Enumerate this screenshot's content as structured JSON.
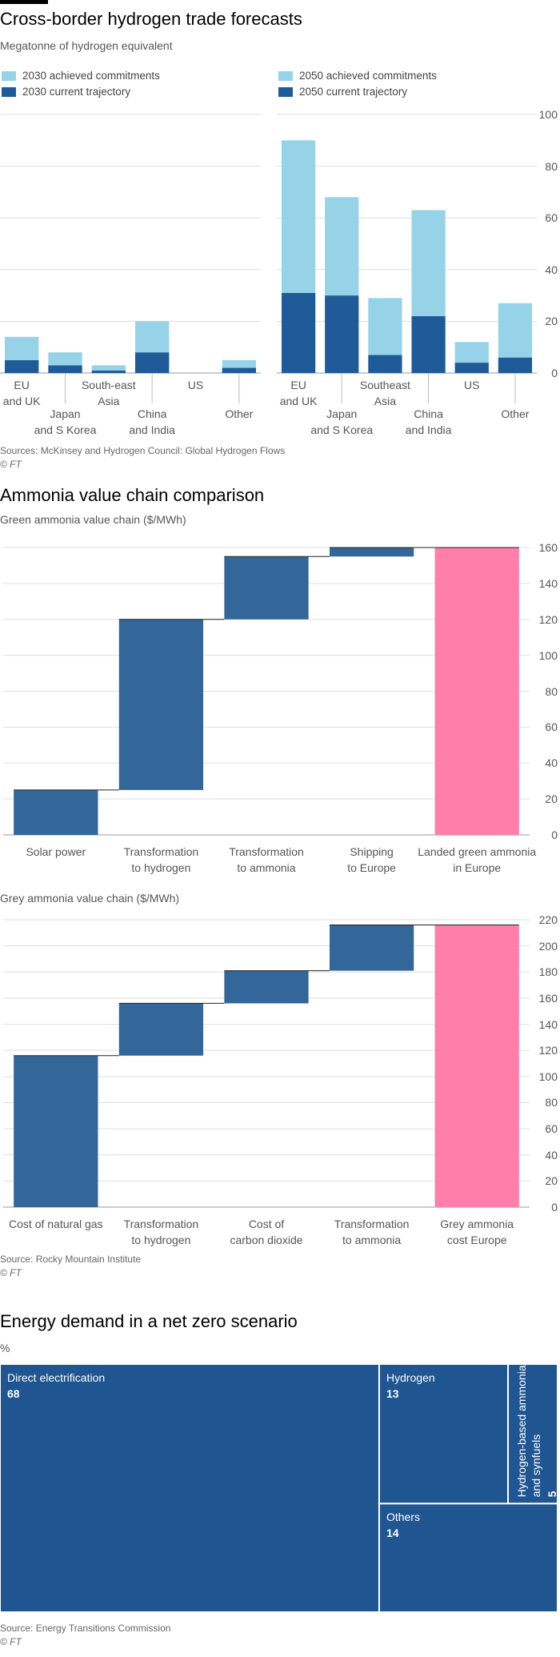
{
  "chart_data": [
    {
      "type": "bar",
      "stacked": true,
      "title": "Cross-border hydrogen trade forecasts",
      "subtitle": "Megatonne of hydrogen equivalent",
      "categories": [
        "EU\nand UK",
        "Japan\nand S Korea",
        "South-east\nAsia",
        "China\nand India",
        "US",
        "Other"
      ],
      "series": [
        {
          "name": "2030 achieved commitments",
          "color": "#96d3e8",
          "values": [
            9,
            5,
            2,
            12,
            0,
            3
          ]
        },
        {
          "name": "2030 current trajectory",
          "color": "#1f5b99",
          "values": [
            5,
            3,
            1,
            8,
            0,
            2
          ]
        }
      ],
      "ylim": [
        0,
        100
      ],
      "grid": true,
      "source": "Sources: McKinsey and Hydrogen Council: Global Hydrogen Flows",
      "credit": "© FT"
    },
    {
      "type": "bar",
      "stacked": true,
      "categories": [
        "EU\nand UK",
        "Japan\nand S Korea",
        "Southeast\nAsia",
        "China\nand India",
        "US",
        "Other"
      ],
      "series": [
        {
          "name": "2050 achieved commitments",
          "color": "#96d3e8",
          "values": [
            59,
            38,
            22,
            41,
            8,
            21
          ]
        },
        {
          "name": "2050 current trajectory",
          "color": "#1f5b99",
          "values": [
            31,
            30,
            7,
            22,
            4,
            6
          ]
        }
      ],
      "ylim": [
        0,
        100
      ],
      "yticks": [
        0,
        20,
        40,
        60,
        80,
        100
      ],
      "grid": true,
      "y_axis_side": "right"
    },
    {
      "type": "waterfall",
      "title": "Ammonia value chain comparison",
      "subtitle": "Green ammonia value chain ($/MWh)",
      "categories": [
        "Solar power",
        "Transformation\nto hydrogen",
        "Transformation\nto ammonia",
        "Shipping\nto Europe",
        "Landed green ammonia\nin Europe"
      ],
      "values": [
        25,
        95,
        35,
        5,
        160
      ],
      "color": "#336699",
      "total_color": "#ff7faa",
      "last_is_total": true,
      "ylim": [
        0,
        160
      ],
      "yticks": [
        0,
        20,
        40,
        60,
        80,
        100,
        120,
        140,
        160
      ],
      "grid": true,
      "y_axis_side": "right"
    },
    {
      "type": "waterfall",
      "subtitle": "Grey ammonia value chain ($/MWh)",
      "categories": [
        "Cost of natural gas",
        "Transformation\nto hydrogen",
        "Cost of\ncarbon dioxide",
        "Transformation\nto ammonia",
        "Grey ammonia\ncost Europe"
      ],
      "values": [
        116,
        40,
        25,
        35,
        216
      ],
      "color": "#336699",
      "total_color": "#ff7faa",
      "last_is_total": true,
      "ylim": [
        0,
        220
      ],
      "yticks": [
        0,
        20,
        40,
        60,
        80,
        100,
        120,
        140,
        160,
        180,
        200,
        220
      ],
      "grid": true,
      "y_axis_side": "right",
      "source": "Source: Rocky Mountain Institute",
      "credit": "© FT"
    },
    {
      "type": "treemap",
      "title": "Energy demand in a net zero scenario",
      "subtitle": "%",
      "categories": [
        "Direct electrification",
        "Hydrogen",
        "Hydrogen-based ammonia\nand synfuels",
        "Others"
      ],
      "values": [
        68,
        13,
        5,
        14
      ],
      "color": "#1f5590",
      "source": "Source: Energy Transitions Commission",
      "credit": "© FT"
    }
  ]
}
